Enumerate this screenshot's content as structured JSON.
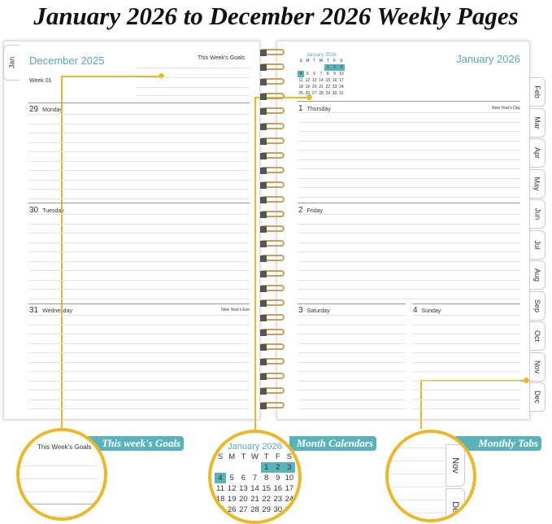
{
  "title": "January 2026 to December 2026 Weekly Pages",
  "left_page": {
    "tab": "Jan",
    "month": "December 2025",
    "goals_label": "This Week's Goals",
    "week": "Week 01",
    "days": [
      {
        "num": "29",
        "name": "Monday",
        "note": ""
      },
      {
        "num": "30",
        "name": "Tuesday",
        "note": ""
      },
      {
        "num": "31",
        "name": "Wednesday",
        "note": "New Year's Eve"
      }
    ]
  },
  "right_page": {
    "month": "January 2026",
    "mini_calendar": {
      "title": "January 2026",
      "weekdays": [
        "S",
        "M",
        "T",
        "W",
        "T",
        "F",
        "S"
      ],
      "cells": [
        "",
        "",
        "",
        "",
        "1",
        "2",
        "3",
        "4",
        "5",
        "6",
        "7",
        "8",
        "9",
        "10",
        "11",
        "12",
        "13",
        "14",
        "15",
        "16",
        "17",
        "18",
        "19",
        "20",
        "21",
        "22",
        "23",
        "24",
        "25",
        "26",
        "27",
        "28",
        "29",
        "30",
        "31"
      ],
      "highlighted": [
        "1",
        "2",
        "3",
        "4"
      ]
    },
    "days": [
      {
        "num": "1",
        "name": "Thursday",
        "note": "New Year's Day"
      },
      {
        "num": "2",
        "name": "Friday",
        "note": ""
      },
      {
        "num": "3",
        "name": "Saturday",
        "note": ""
      },
      {
        "num": "4",
        "name": "Sunday",
        "note": ""
      }
    ],
    "tabs": [
      "Feb",
      "Mar",
      "Apr",
      "May",
      "Jun",
      "Jul",
      "Aug",
      "Sep",
      "Oct",
      "Nov",
      "Dec"
    ]
  },
  "callouts": {
    "goals": "This week's Goals",
    "calendars": "Month Calendars",
    "tabs": "Monthly Tabs",
    "goals_zoom_label": "This Week's Goals",
    "tabs_zoom": [
      "Nov",
      "Dec"
    ]
  },
  "colors": {
    "teal": "#5ab3b8",
    "callout": "#e8b92a"
  }
}
